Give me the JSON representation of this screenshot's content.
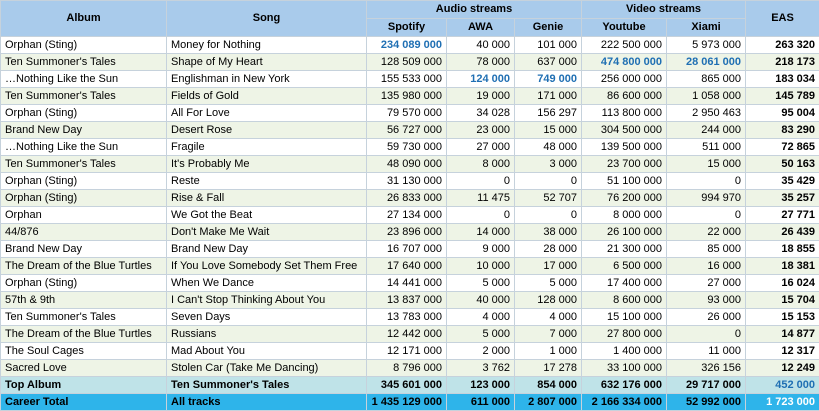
{
  "header": {
    "album": "Album",
    "song": "Song",
    "audio_group": "Audio streams",
    "video_group": "Video streams",
    "eas": "EAS",
    "spotify": "Spotify",
    "awa": "AWA",
    "genie": "Genie",
    "youtube": "Youtube",
    "xiami": "Xiami"
  },
  "colors": {
    "header_bg": "#a9cbeb",
    "highlight_text": "#1f6fb3",
    "top_album_bg": "#bfe3e8",
    "career_bg": "#2eb4ea"
  },
  "rows": [
    {
      "album": "Orphan (Sting)",
      "song": "Money for Nothing",
      "spotify": "234 089 000",
      "awa": "40 000",
      "genie": "101 000",
      "youtube": "222 500 000",
      "xiami": "5 973 000",
      "eas": "263 320"
    },
    {
      "album": "Ten Summoner's Tales",
      "song": "Shape of My Heart",
      "spotify": "128 509 000",
      "awa": "78 000",
      "genie": "637 000",
      "youtube": "474 800 000",
      "xiami": "28 061 000",
      "eas": "218 173"
    },
    {
      "album": "…Nothing Like the Sun",
      "song": "Englishman in New York",
      "spotify": "155 533 000",
      "awa": "124 000",
      "genie": "749 000",
      "youtube": "256 000 000",
      "xiami": "865 000",
      "eas": "183 034"
    },
    {
      "album": "Ten Summoner's Tales",
      "song": "Fields of Gold",
      "spotify": "135 980 000",
      "awa": "19 000",
      "genie": "171 000",
      "youtube": "86 600 000",
      "xiami": "1 058 000",
      "eas": "145 789"
    },
    {
      "album": "Orphan (Sting)",
      "song": "All For Love",
      "spotify": "79 570 000",
      "awa": "34 028",
      "genie": "156 297",
      "youtube": "113 800 000",
      "xiami": "2 950 463",
      "eas": "95 004"
    },
    {
      "album": "Brand New Day",
      "song": "Desert Rose",
      "spotify": "56 727 000",
      "awa": "23 000",
      "genie": "15 000",
      "youtube": "304 500 000",
      "xiami": "244 000",
      "eas": "83 290"
    },
    {
      "album": "…Nothing Like the Sun",
      "song": "Fragile",
      "spotify": "59 730 000",
      "awa": "27 000",
      "genie": "48 000",
      "youtube": "139 500 000",
      "xiami": "511 000",
      "eas": "72 865"
    },
    {
      "album": "Ten Summoner's Tales",
      "song": "It's Probably Me",
      "spotify": "48 090 000",
      "awa": "8 000",
      "genie": "3 000",
      "youtube": "23 700 000",
      "xiami": "15 000",
      "eas": "50 163"
    },
    {
      "album": "Orphan (Sting)",
      "song": "Reste",
      "spotify": "31 130 000",
      "awa": "0",
      "genie": "0",
      "youtube": "51 100 000",
      "xiami": "0",
      "eas": "35 429"
    },
    {
      "album": "Orphan (Sting)",
      "song": "Rise & Fall",
      "spotify": "26 833 000",
      "awa": "11 475",
      "genie": "52 707",
      "youtube": "76 200 000",
      "xiami": "994 970",
      "eas": "35 257"
    },
    {
      "album": "Orphan",
      "song": "We Got the Beat",
      "spotify": "27 134 000",
      "awa": "0",
      "genie": "0",
      "youtube": "8 000 000",
      "xiami": "0",
      "eas": "27 771"
    },
    {
      "album": "44/876",
      "song": "Don't Make Me Wait",
      "spotify": "23 896 000",
      "awa": "14 000",
      "genie": "38 000",
      "youtube": "26 100 000",
      "xiami": "22 000",
      "eas": "26 439"
    },
    {
      "album": "Brand New Day",
      "song": "Brand New Day",
      "spotify": "16 707 000",
      "awa": "9 000",
      "genie": "28 000",
      "youtube": "21 300 000",
      "xiami": "85 000",
      "eas": "18 855"
    },
    {
      "album": "The Dream of the Blue Turtles",
      "song": "If You Love Somebody Set Them Free",
      "spotify": "17 640 000",
      "awa": "10 000",
      "genie": "17 000",
      "youtube": "6 500 000",
      "xiami": "16 000",
      "eas": "18 381"
    },
    {
      "album": "Orphan (Sting)",
      "song": "When We Dance",
      "spotify": "14 441 000",
      "awa": "5 000",
      "genie": "5 000",
      "youtube": "17 400 000",
      "xiami": "27 000",
      "eas": "16 024"
    },
    {
      "album": "57th & 9th",
      "song": "I Can't Stop Thinking About You",
      "spotify": "13 837 000",
      "awa": "40 000",
      "genie": "128 000",
      "youtube": "8 600 000",
      "xiami": "93 000",
      "eas": "15 704"
    },
    {
      "album": "Ten Summoner's Tales",
      "song": "Seven Days",
      "spotify": "13 783 000",
      "awa": "4 000",
      "genie": "4 000",
      "youtube": "15 100 000",
      "xiami": "26 000",
      "eas": "15 153"
    },
    {
      "album": "The Dream of the Blue Turtles",
      "song": "Russians",
      "spotify": "12 442 000",
      "awa": "5 000",
      "genie": "7 000",
      "youtube": "27 800 000",
      "xiami": "0",
      "eas": "14 877"
    },
    {
      "album": "The Soul Cages",
      "song": "Mad About You",
      "spotify": "12 171 000",
      "awa": "2 000",
      "genie": "1 000",
      "youtube": "1 400 000",
      "xiami": "11 000",
      "eas": "12 317"
    },
    {
      "album": "Sacred Love",
      "song": "Stolen Car (Take Me Dancing)",
      "spotify": "8 796 000",
      "awa": "3 762",
      "genie": "17 278",
      "youtube": "33 100 000",
      "xiami": "326 156",
      "eas": "12 249"
    }
  ],
  "top_album": {
    "label": "Top Album",
    "song": "Ten Summoner's Tales",
    "spotify": "345 601 000",
    "awa": "123 000",
    "genie": "854 000",
    "youtube": "632 176 000",
    "xiami": "29 717 000",
    "eas": "452 000"
  },
  "career_total": {
    "label": "Career Total",
    "song": "All tracks",
    "spotify": "1 435 129 000",
    "awa": "611 000",
    "genie": "2 807 000",
    "youtube": "2 166 334 000",
    "xiami": "52 992 000",
    "eas": "1 723 000"
  }
}
